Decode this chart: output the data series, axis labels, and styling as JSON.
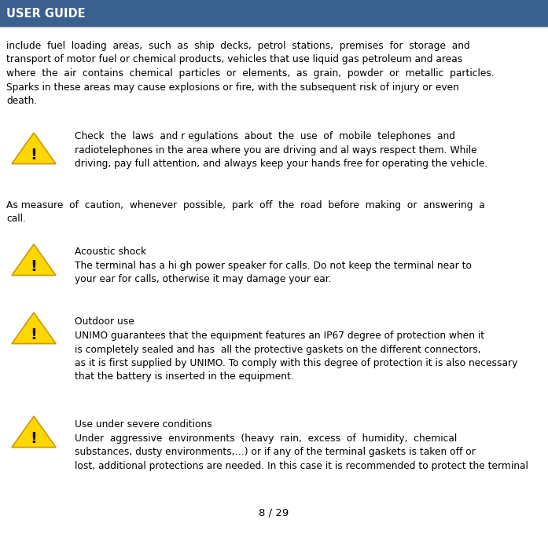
{
  "header_text": "USER GUIDE",
  "header_bg_color": "#3a6090",
  "header_text_color": "#ffffff",
  "page_number": "8 / 29",
  "bg_color": "#ffffff",
  "text_color": "#000000",
  "font_size_body": 8.8,
  "font_size_header": 10.5,
  "font_size_page": 9.5,
  "body1": "include  fuel  loading  areas,  such  as  ship  decks,  petrol  stations,  premises  for  storage  and\ntransport of motor fuel or chemical products, vehicles that use liquid gas petroleum and areas\nwhere  the  air  contains  chemical  particles  or  elements,  as  grain,  powder  or  metallic  particles.\nSparks in these areas may cause explosions or fire, with the subsequent risk of injury or even\ndeath.",
  "warn1_text": "Check  the  laws  and r egulations  about  the  use  of  mobile  telephones  and\nradiotelephones in the area where you are driving and al ways respect them. While\ndriving, pay full attention, and always keep your hands free for operating the vehicle.",
  "body2": "As measure  of  caution,  whenever  possible,  park  off  the  road  before  making  or  answering  a\ncall.",
  "warn2_title": "Acoustic shock",
  "warn2_text": "The terminal has a hi gh power speaker for calls. Do not keep the terminal near to\nyour ear for calls, otherwise it may damage your ear.",
  "warn3_title": "Outdoor use",
  "warn3_text": "UNIMO guarantees that the equipment features an IP67 degree of protection when it\nis completely sealed and has  all the protective gaskets on the different connectors,\nas it is first supplied by UNIMO. To comply with this degree of protection it is also necessary\nthat the battery is inserted in the equipment.",
  "warn4_title": "Use under severe conditions",
  "warn4_text": "Under  aggressive  environments  (heavy  rain,  excess  of  humidity,  chemical\nsubstances, dusty environments,…) or if any of the terminal gaskets is taken off or\nlost, additional protections are needed. In this case it is recommended to protect the terminal",
  "icon_triangle_color": "#FFD700",
  "icon_triangle_edge": "#CC9900",
  "icon_exclaim_color": "#111111"
}
